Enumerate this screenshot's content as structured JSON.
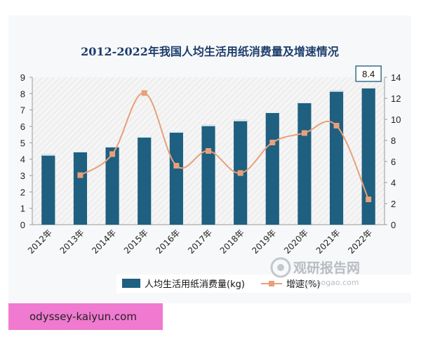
{
  "chart_data": {
    "title": "2012-2022年我国人均生活用纸消费量及增速情况",
    "categories": [
      "2012年",
      "2013年",
      "2014年",
      "2015年",
      "2016年",
      "2017年",
      "2018年",
      "2019年",
      "2020年",
      "2021年",
      "2022年"
    ],
    "series": [
      {
        "name": "人均生活用纸消费量(kg)",
        "type": "bar",
        "axis": "left",
        "color": "#1f5f80",
        "values": [
          4.3,
          4.5,
          4.8,
          5.4,
          5.7,
          6.1,
          6.4,
          6.9,
          7.5,
          8.2,
          8.4
        ]
      },
      {
        "name": "增速(%)",
        "type": "line",
        "axis": "right",
        "color": "#e8a07a",
        "values": [
          null,
          4.7,
          6.7,
          12.5,
          5.6,
          7.0,
          4.9,
          7.8,
          8.7,
          9.4,
          2.4
        ]
      }
    ],
    "y_left": {
      "min": 0,
      "max": 9,
      "ticks": [
        "0",
        "1",
        "2",
        "3",
        "4",
        "5",
        "6",
        "7",
        "8",
        "9"
      ]
    },
    "y_right": {
      "min": 0,
      "max": 14,
      "ticks": [
        "0",
        "2",
        "4",
        "6",
        "8",
        "10",
        "12",
        "14"
      ]
    },
    "callout": "8.4",
    "legend_position": "bottom",
    "grid": false,
    "type": "bar"
  },
  "watermark": {
    "text": "观研报告网",
    "sub": "chinabaogao.com"
  },
  "footer_tag": "odyssey-kaiyun.com"
}
